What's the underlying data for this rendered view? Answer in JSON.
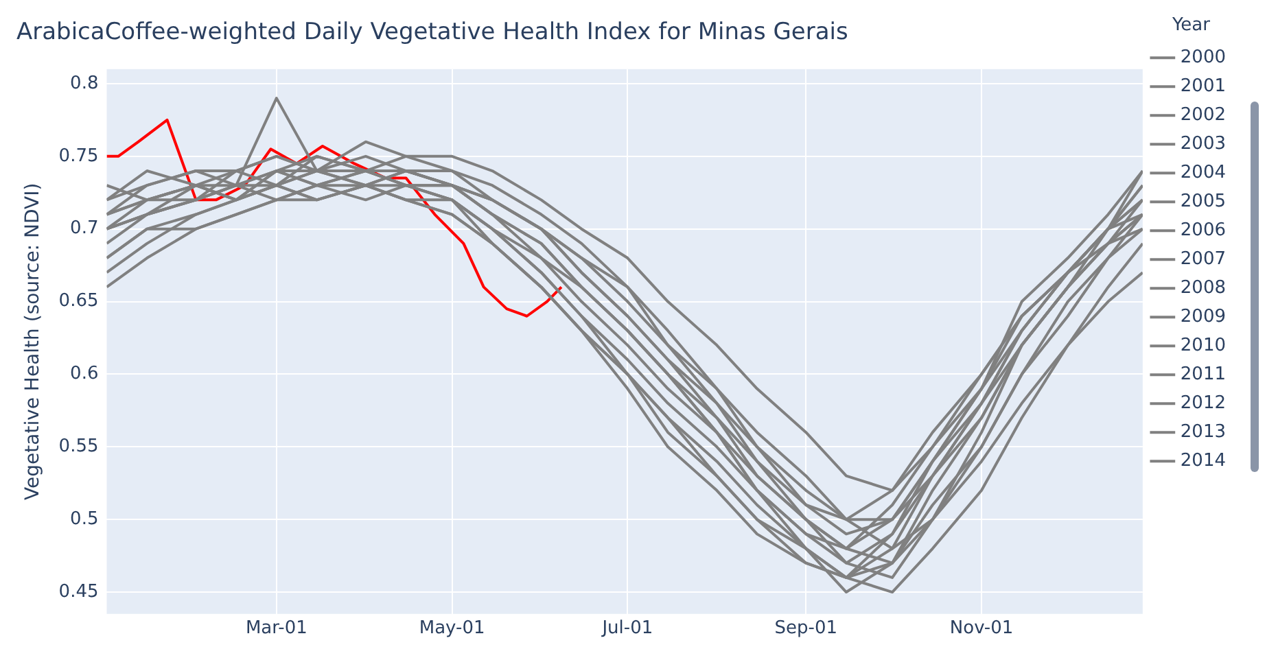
{
  "chart_data": {
    "type": "line",
    "title": "ArabicaCoffee-weighted Daily Vegetative Health Index for Minas Gerais",
    "ylabel": "Vegetative Health (source: NDVI)",
    "legend_title": "Year",
    "legend": "right",
    "grid": true,
    "marker": "none",
    "line_style": "solid",
    "x": [
      "--01-01",
      "--01-15",
      "--02-01",
      "--02-15",
      "--03-01",
      "--03-15",
      "--04-01",
      "--04-15",
      "--05-01",
      "--05-15",
      "--06-01",
      "--06-15",
      "--07-01",
      "--07-15",
      "--08-01",
      "--08-15",
      "--09-01",
      "--09-15",
      "--10-01",
      "--10-15",
      "--11-01",
      "--11-15",
      "--12-01",
      "--12-15",
      "--12-27"
    ],
    "xlim": [
      "--01-01",
      "--12-27"
    ],
    "xticks": [
      {
        "value": "--03-01",
        "label": "Mar-01"
      },
      {
        "value": "--05-01",
        "label": "May-01"
      },
      {
        "value": "--07-01",
        "label": "Jul-01"
      },
      {
        "value": "--09-01",
        "label": "Sep-01"
      },
      {
        "value": "--11-01",
        "label": "Nov-01"
      }
    ],
    "ylim": [
      0.435,
      0.81
    ],
    "yticks": [
      0.45,
      0.5,
      0.55,
      0.6,
      0.65,
      0.7,
      0.75,
      0.8
    ],
    "series": [
      {
        "name": "2000",
        "color": "#808080",
        "values": [
          0.7,
          0.71,
          0.72,
          0.73,
          0.79,
          0.74,
          0.74,
          0.73,
          0.72,
          0.7,
          0.68,
          0.66,
          0.63,
          0.6,
          0.57,
          0.54,
          0.51,
          0.5,
          0.52,
          0.56,
          0.6,
          0.64,
          0.67,
          0.7,
          0.72
        ]
      },
      {
        "name": "2001",
        "color": "#808080",
        "values": [
          0.72,
          0.74,
          0.73,
          0.72,
          0.73,
          0.74,
          0.73,
          0.74,
          0.73,
          0.72,
          0.7,
          0.67,
          0.64,
          0.61,
          0.58,
          0.54,
          0.5,
          0.48,
          0.5,
          0.54,
          0.58,
          0.62,
          0.66,
          0.69,
          0.71
        ]
      },
      {
        "name": "2002",
        "color": "#808080",
        "values": [
          0.68,
          0.7,
          0.71,
          0.72,
          0.73,
          0.72,
          0.73,
          0.73,
          0.72,
          0.7,
          0.67,
          0.64,
          0.61,
          0.58,
          0.55,
          0.52,
          0.49,
          0.48,
          0.51,
          0.55,
          0.6,
          0.64,
          0.67,
          0.69,
          0.7
        ]
      },
      {
        "name": "2003",
        "color": "#808080",
        "values": [
          0.7,
          0.72,
          0.73,
          0.74,
          0.75,
          0.74,
          0.75,
          0.74,
          0.74,
          0.73,
          0.71,
          0.69,
          0.66,
          0.63,
          0.59,
          0.55,
          0.51,
          0.49,
          0.5,
          0.53,
          0.57,
          0.62,
          0.66,
          0.69,
          0.72
        ]
      },
      {
        "name": "2004",
        "color": "#808080",
        "values": [
          0.66,
          0.68,
          0.7,
          0.71,
          0.72,
          0.73,
          0.72,
          0.73,
          0.73,
          0.71,
          0.69,
          0.66,
          0.63,
          0.6,
          0.56,
          0.53,
          0.5,
          0.47,
          0.46,
          0.5,
          0.56,
          0.62,
          0.66,
          0.7,
          0.73
        ]
      },
      {
        "name": "2005",
        "color": "#808080",
        "values": [
          0.71,
          0.73,
          0.74,
          0.73,
          0.74,
          0.73,
          0.74,
          0.74,
          0.73,
          0.71,
          0.68,
          0.65,
          0.62,
          0.59,
          0.56,
          0.52,
          0.49,
          0.47,
          0.49,
          0.53,
          0.58,
          0.63,
          0.67,
          0.7,
          0.72
        ]
      },
      {
        "name": "2006",
        "color": "#808080",
        "values": [
          0.69,
          0.71,
          0.72,
          0.74,
          0.73,
          0.75,
          0.74,
          0.75,
          0.74,
          0.72,
          0.7,
          0.67,
          0.64,
          0.61,
          0.57,
          0.53,
          0.5,
          0.48,
          0.47,
          0.5,
          0.55,
          0.6,
          0.65,
          0.68,
          0.71
        ]
      },
      {
        "name": "2007",
        "color": "#808080",
        "values": [
          0.73,
          0.72,
          0.73,
          0.72,
          0.74,
          0.73,
          0.73,
          0.72,
          0.72,
          0.7,
          0.67,
          0.64,
          0.6,
          0.57,
          0.53,
          0.5,
          0.47,
          0.46,
          0.48,
          0.53,
          0.58,
          0.63,
          0.67,
          0.7,
          0.73
        ]
      },
      {
        "name": "2008",
        "color": "#808080",
        "values": [
          0.67,
          0.69,
          0.71,
          0.72,
          0.74,
          0.74,
          0.76,
          0.75,
          0.75,
          0.74,
          0.72,
          0.7,
          0.68,
          0.65,
          0.62,
          0.59,
          0.56,
          0.53,
          0.52,
          0.55,
          0.59,
          0.63,
          0.67,
          0.7,
          0.74
        ]
      },
      {
        "name": "2009",
        "color": "#808080",
        "values": [
          0.72,
          0.73,
          0.74,
          0.74,
          0.75,
          0.74,
          0.74,
          0.73,
          0.73,
          0.72,
          0.7,
          0.68,
          0.66,
          0.62,
          0.58,
          0.55,
          0.52,
          0.5,
          0.5,
          0.54,
          0.59,
          0.65,
          0.68,
          0.71,
          0.74
        ]
      },
      {
        "name": "2010",
        "color": "#808080",
        "values": [
          0.7,
          0.71,
          0.73,
          0.73,
          0.72,
          0.73,
          0.74,
          0.73,
          0.72,
          0.69,
          0.66,
          0.63,
          0.59,
          0.55,
          0.52,
          0.49,
          0.47,
          0.46,
          0.49,
          0.54,
          0.59,
          0.64,
          0.67,
          0.7,
          0.71
        ]
      },
      {
        "name": "2011",
        "color": "#808080",
        "values": [
          0.71,
          0.72,
          0.72,
          0.73,
          0.73,
          0.74,
          0.73,
          0.74,
          0.73,
          0.71,
          0.69,
          0.66,
          0.63,
          0.6,
          0.56,
          0.52,
          0.48,
          0.45,
          0.47,
          0.52,
          0.57,
          0.62,
          0.66,
          0.69,
          0.71
        ]
      },
      {
        "name": "2012",
        "color": "#808080",
        "values": [
          0.68,
          0.7,
          0.7,
          0.71,
          0.72,
          0.72,
          0.73,
          0.72,
          0.71,
          0.69,
          0.66,
          0.63,
          0.6,
          0.57,
          0.54,
          0.51,
          0.48,
          0.46,
          0.47,
          0.51,
          0.55,
          0.6,
          0.64,
          0.68,
          0.7
        ]
      },
      {
        "name": "2013",
        "color": "#808080",
        "values": [
          0.7,
          0.71,
          0.72,
          0.73,
          0.74,
          0.75,
          0.74,
          0.74,
          0.73,
          0.72,
          0.7,
          0.68,
          0.65,
          0.62,
          0.59,
          0.56,
          0.53,
          0.5,
          0.48,
          0.5,
          0.54,
          0.58,
          0.62,
          0.65,
          0.67
        ]
      },
      {
        "name": "2014",
        "color": "#808080",
        "values": [
          0.71,
          0.72,
          0.73,
          0.72,
          0.73,
          0.72,
          0.73,
          0.72,
          0.71,
          0.69,
          0.66,
          0.63,
          0.6,
          0.56,
          0.53,
          0.5,
          0.48,
          0.46,
          0.45,
          0.48,
          0.52,
          0.57,
          0.62,
          0.66,
          0.69
        ]
      },
      {
        "color": "#ff0000",
        "x": [
          "--01-01",
          "--01-05",
          "--01-12",
          "--01-22",
          "--02-01",
          "--02-08",
          "--02-18",
          "--02-27",
          "--03-08",
          "--03-17",
          "--03-28",
          "--04-08",
          "--04-15",
          "--04-25",
          "--05-05",
          "--05-12",
          "--05-20",
          "--05-27",
          "--06-03",
          "--06-08"
        ],
        "values": [
          0.75,
          0.75,
          0.76,
          0.775,
          0.72,
          0.72,
          0.73,
          0.755,
          0.745,
          0.757,
          0.745,
          0.735,
          0.735,
          0.71,
          0.69,
          0.66,
          0.645,
          0.64,
          0.65,
          0.66
        ]
      }
    ]
  }
}
